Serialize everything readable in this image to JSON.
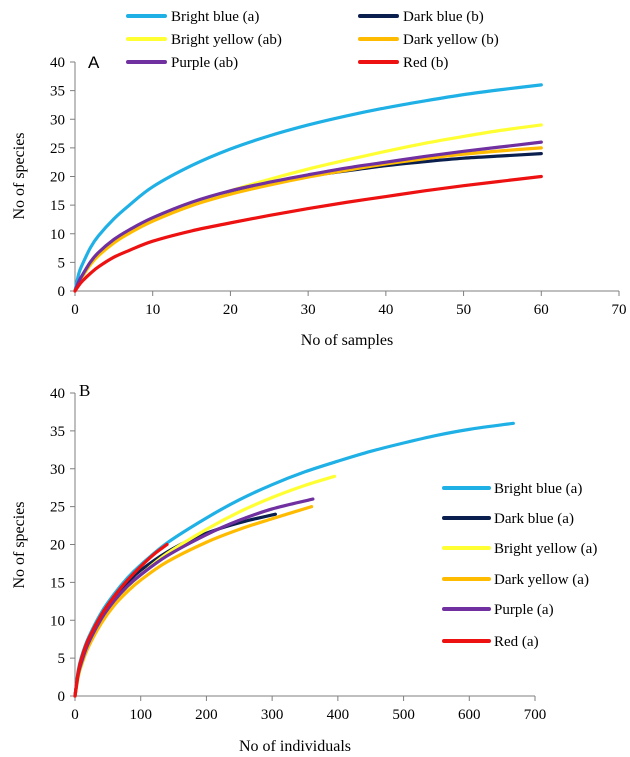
{
  "chart_data": [
    {
      "type": "line",
      "panel_label": "A",
      "xlabel": "No of samples",
      "ylabel": "No of species",
      "xlim": [
        0,
        70
      ],
      "ylim": [
        0,
        40
      ],
      "xticks": [
        0,
        10,
        20,
        30,
        40,
        50,
        60,
        70
      ],
      "yticks": [
        0,
        5,
        10,
        15,
        20,
        25,
        30,
        35,
        40
      ],
      "grid": false,
      "legend_position": "top",
      "series": [
        {
          "name": "Bright blue (a)",
          "color": "#1fb0e6",
          "x": [
            0,
            0.5,
            1,
            2,
            3,
            5,
            7,
            10,
            15,
            20,
            25,
            30,
            35,
            40,
            45,
            50,
            55,
            60
          ],
          "y": [
            0,
            3.1,
            4.8,
            7.6,
            9.6,
            12.6,
            15.0,
            18.2,
            21.9,
            24.8,
            27.1,
            29.0,
            30.6,
            32.0,
            33.2,
            34.3,
            35.2,
            36.0
          ]
        },
        {
          "name": "Dark blue (b)",
          "color": "#0a1f4e",
          "x": [
            0,
            0.5,
            1,
            2,
            3,
            5,
            7,
            10,
            15,
            20,
            25,
            30,
            35,
            40,
            45,
            50,
            55,
            60
          ],
          "y": [
            0,
            1.6,
            2.8,
            5.0,
            6.6,
            8.9,
            10.6,
            12.7,
            15.2,
            17.2,
            18.7,
            20.0,
            21.0,
            21.9,
            22.6,
            23.2,
            23.6,
            24.0
          ]
        },
        {
          "name": "Bright yellow (ab)",
          "color": "#ffff33",
          "x": [
            0,
            0.5,
            1,
            2,
            3,
            5,
            7,
            10,
            15,
            20,
            25,
            30,
            35,
            40,
            45,
            50,
            55,
            60
          ],
          "y": [
            0,
            1.5,
            2.6,
            4.6,
            6.1,
            8.4,
            10.1,
            12.3,
            15.2,
            17.5,
            19.5,
            21.3,
            22.9,
            24.4,
            25.8,
            27.0,
            28.1,
            29.0
          ]
        },
        {
          "name": "Dark yellow (b)",
          "color": "#ffbb00",
          "x": [
            0,
            0.5,
            1,
            2,
            3,
            5,
            7,
            10,
            15,
            20,
            25,
            30,
            35,
            40,
            45,
            50,
            55,
            60
          ],
          "y": [
            0,
            1.6,
            2.7,
            4.7,
            6.2,
            8.4,
            10.1,
            12.2,
            14.9,
            16.9,
            18.5,
            19.9,
            21.1,
            22.2,
            23.1,
            23.9,
            24.5,
            25.0
          ]
        },
        {
          "name": "Purple (ab)",
          "color": "#7030a0",
          "x": [
            0,
            0.5,
            1,
            2,
            3,
            5,
            7,
            10,
            15,
            20,
            25,
            30,
            35,
            40,
            45,
            50,
            55,
            60
          ],
          "y": [
            0,
            1.7,
            2.9,
            5.1,
            6.7,
            9.0,
            10.7,
            12.8,
            15.5,
            17.5,
            19.0,
            20.3,
            21.5,
            22.5,
            23.5,
            24.4,
            25.2,
            26.0
          ]
        },
        {
          "name": "Red (b)",
          "color": "#ee1111",
          "x": [
            0,
            0.5,
            1,
            2,
            3,
            5,
            7,
            10,
            15,
            20,
            25,
            30,
            35,
            40,
            45,
            50,
            55,
            60
          ],
          "y": [
            0,
            1.0,
            1.8,
            3.1,
            4.2,
            5.9,
            7.1,
            8.7,
            10.5,
            11.9,
            13.2,
            14.4,
            15.5,
            16.5,
            17.5,
            18.4,
            19.2,
            20.0
          ]
        }
      ]
    },
    {
      "type": "line",
      "panel_label": "B",
      "xlabel": "No of individuals",
      "ylabel": "No of species",
      "xlim": [
        0,
        700
      ],
      "ylim": [
        0,
        40
      ],
      "xticks": [
        0,
        100,
        200,
        300,
        400,
        500,
        600,
        700
      ],
      "yticks": [
        0,
        5,
        10,
        15,
        20,
        25,
        30,
        35,
        40
      ],
      "grid": false,
      "legend_position": "right",
      "series": [
        {
          "name": "Bright blue (a)",
          "color": "#1fb0e6",
          "x": [
            0,
            5,
            10,
            20,
            40,
            60,
            80,
            100,
            140,
            200,
            250,
            300,
            350,
            400,
            450,
            500,
            550,
            600,
            667
          ],
          "y": [
            0,
            3.4,
            5.2,
            7.6,
            11.0,
            13.5,
            15.6,
            17.3,
            20.2,
            23.5,
            25.9,
            27.9,
            29.6,
            31.0,
            32.3,
            33.4,
            34.4,
            35.2,
            36.0
          ]
        },
        {
          "name": "Dark blue (a)",
          "color": "#0a1f4e",
          "x": [
            0,
            5,
            10,
            20,
            40,
            60,
            80,
            100,
            140,
            180,
            220,
            260,
            305
          ],
          "y": [
            0,
            3.0,
            4.8,
            7.2,
            10.6,
            13.1,
            15.0,
            16.6,
            19.0,
            20.8,
            22.1,
            23.1,
            24.0
          ]
        },
        {
          "name": "Bright yellow (a)",
          "color": "#ffff33",
          "x": [
            0,
            5,
            10,
            20,
            40,
            60,
            80,
            100,
            140,
            200,
            250,
            300,
            350,
            395
          ],
          "y": [
            0,
            2.6,
            4.2,
            6.6,
            9.9,
            12.4,
            14.4,
            16.0,
            18.8,
            22.0,
            24.3,
            26.2,
            27.8,
            29.0
          ]
        },
        {
          "name": "Dark yellow (a)",
          "color": "#ffbb00",
          "x": [
            0,
            5,
            10,
            20,
            40,
            60,
            80,
            100,
            140,
            200,
            250,
            300,
            360
          ],
          "y": [
            0,
            2.6,
            4.1,
            6.4,
            9.6,
            12.0,
            13.8,
            15.3,
            17.7,
            20.3,
            22.0,
            23.4,
            25.0
          ]
        },
        {
          "name": "Purple (a)",
          "color": "#7030a0",
          "x": [
            0,
            5,
            10,
            20,
            40,
            60,
            80,
            100,
            140,
            200,
            250,
            300,
            362
          ],
          "y": [
            0,
            2.9,
            4.5,
            6.9,
            10.2,
            12.6,
            14.5,
            16.0,
            18.5,
            21.3,
            23.2,
            24.7,
            26.0
          ]
        },
        {
          "name": "Red (a)",
          "color": "#ee1111",
          "x": [
            0,
            5,
            10,
            20,
            40,
            60,
            80,
            100,
            120,
            140
          ],
          "y": [
            0,
            3.2,
            5.0,
            7.4,
            10.7,
            13.2,
            15.3,
            17.1,
            18.7,
            20.0
          ]
        }
      ]
    }
  ]
}
